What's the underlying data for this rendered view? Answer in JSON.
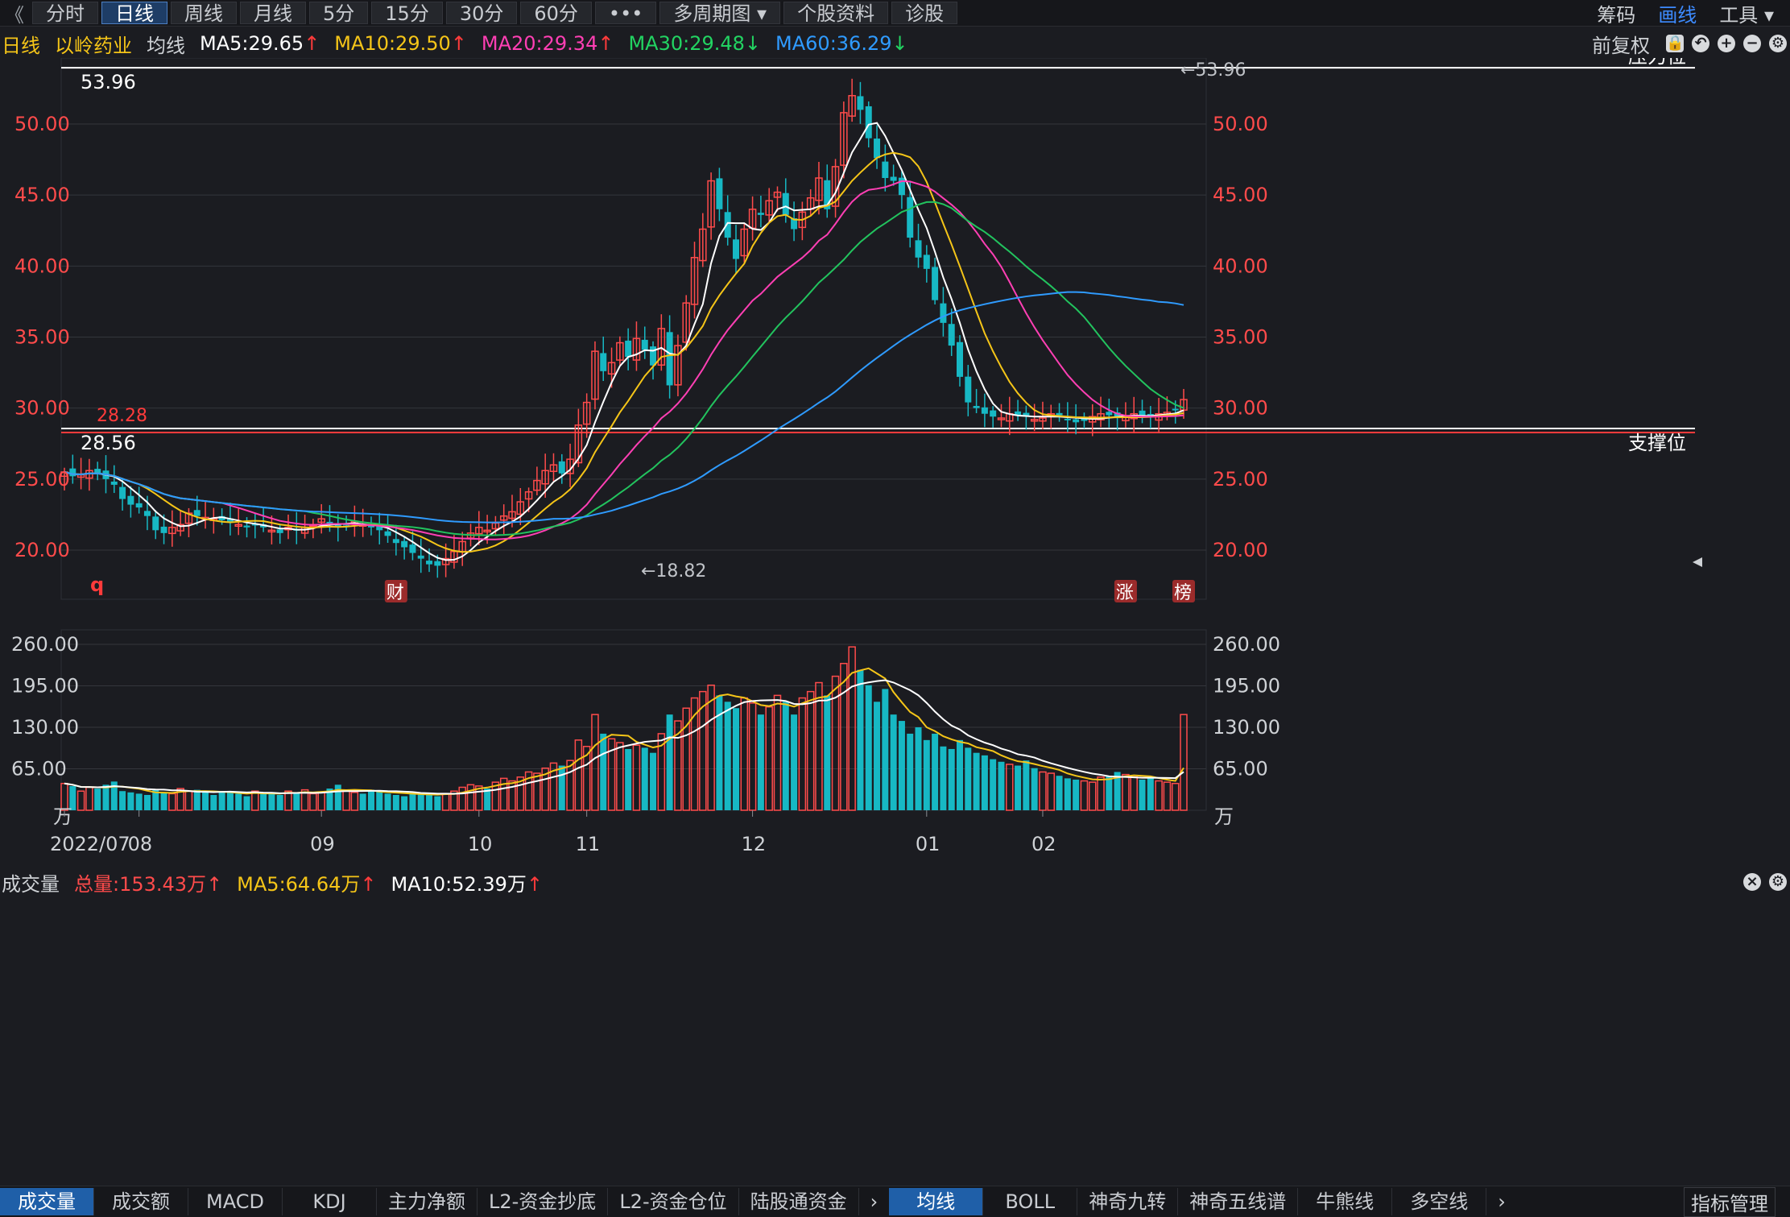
{
  "toolbar": {
    "tabs": [
      {
        "label": "分时",
        "active": false
      },
      {
        "label": "日线",
        "active": true
      },
      {
        "label": "周线",
        "active": false
      },
      {
        "label": "月线",
        "active": false
      },
      {
        "label": "5分",
        "active": false
      },
      {
        "label": "15分",
        "active": false
      },
      {
        "label": "30分",
        "active": false
      },
      {
        "label": "60分",
        "active": false
      },
      {
        "label": "•••",
        "active": false
      },
      {
        "label": "多周期图 ▾",
        "active": false
      },
      {
        "label": "个股资料",
        "active": false
      },
      {
        "label": "诊股",
        "active": false
      }
    ],
    "right_items": [
      {
        "label": "筹码",
        "color": "#cfd2d6"
      },
      {
        "label": "画线",
        "color": "#3d8bff"
      },
      {
        "label": "工具 ▾",
        "color": "#cfd2d6"
      }
    ]
  },
  "info": {
    "period": "日线",
    "stock": "以岭药业",
    "ma_label": "均线",
    "ma": [
      {
        "text": "MA5:29.65",
        "arrow": "↑",
        "color": "#ffffff",
        "arrow_color": "#ff3b3b"
      },
      {
        "text": "MA10:29.50",
        "arrow": "↑",
        "color": "#f5c518",
        "arrow_color": "#ff3b3b"
      },
      {
        "text": "MA20:29.34",
        "arrow": "↑",
        "color": "#ff3fb4",
        "arrow_color": "#ff3b3b"
      },
      {
        "text": "MA30:29.48",
        "arrow": "↓",
        "color": "#22d462",
        "arrow_color": "#22d462"
      },
      {
        "text": "MA60:36.29",
        "arrow": "↓",
        "color": "#2f9bff",
        "arrow_color": "#22d462"
      }
    ],
    "adjust": "前复权"
  },
  "colors": {
    "up": "#ff4b4b",
    "down": "#17b8c4",
    "ma5": "#ffffff",
    "ma10": "#f5c518",
    "ma20": "#ff3fb4",
    "ma30": "#22c35e",
    "ma60": "#2f9bff",
    "grid": "#34363c",
    "axis_price": "#ff4b4b"
  },
  "price_panel": {
    "y_ticks": [
      "50.00",
      "45.00",
      "40.00",
      "35.00",
      "30.00",
      "25.00",
      "20.00"
    ],
    "y_tick_values": [
      50,
      45,
      40,
      35,
      30,
      25,
      20
    ],
    "resistance": {
      "value": 53.96,
      "label": "53.96",
      "tag": "压力位"
    },
    "support": {
      "value": 28.56,
      "label": "28.56",
      "tag": "支撑位"
    },
    "red_line": {
      "value": 28.28,
      "label": "28.28"
    },
    "high_marker": "←53.96",
    "low_marker": "←18.82",
    "events": [
      {
        "label": "财",
        "date_index": 40
      },
      {
        "label": "涨",
        "date_index": 128
      },
      {
        "label": "榜",
        "date_index": 135
      }
    ],
    "corner_letter": "q"
  },
  "volume_panel": {
    "title": "成交量",
    "total": "总量:153.43万",
    "total_arrow": "↑",
    "ma5": "MA5:64.64万",
    "ma5_arrow": "↑",
    "ma10": "MA10:52.39万",
    "ma10_arrow": "↑",
    "y_ticks": [
      "260.00",
      "195.00",
      "130.00",
      "65.00"
    ],
    "y_tick_values": [
      260,
      195,
      130,
      65
    ],
    "unit": "万"
  },
  "x_axis": {
    "labels": [
      {
        "text": "2022/07",
        "date_index": 0
      },
      {
        "text": "08",
        "date_index": 9
      },
      {
        "text": "09",
        "date_index": 31
      },
      {
        "text": "10",
        "date_index": 50
      },
      {
        "text": "11",
        "date_index": 63
      },
      {
        "text": "12",
        "date_index": 83
      },
      {
        "text": "01",
        "date_index": 104
      },
      {
        "text": "02",
        "date_index": 118
      }
    ]
  },
  "bottom_tabs_left": [
    "成交量",
    "成交额",
    "MACD",
    "KDJ",
    "主力净额",
    "L2-资金抄底",
    "L2-资金仓位",
    "陆股通资金"
  ],
  "bottom_tabs_right": [
    "均线",
    "BOLL",
    "神奇九转",
    "神奇五线谱",
    "牛熊线",
    "多空线"
  ],
  "bottom_right_label": "指标管理",
  "chart_data": {
    "type": "candlestick",
    "title": "以岭药业 日线",
    "ylim": [
      17,
      55
    ],
    "volume_ylim": [
      0,
      260
    ],
    "ohlc_step_days": 1,
    "closes": [
      25.5,
      25.2,
      25.3,
      25.6,
      25.4,
      25.0,
      24.6,
      23.6,
      23.2,
      23.0,
      22.4,
      21.4,
      21.2,
      21.6,
      21.8,
      22.6,
      22.4,
      22.3,
      22.2,
      22.1,
      22.0,
      21.8,
      21.6,
      21.8,
      21.6,
      21.4,
      21.2,
      21.6,
      21.4,
      21.6,
      21.8,
      22.2,
      21.9,
      21.6,
      21.8,
      22.0,
      21.8,
      21.6,
      21.4,
      21.0,
      20.5,
      20.2,
      19.8,
      19.4,
      19.0,
      18.9,
      19.4,
      19.9,
      20.6,
      21.2,
      21.6,
      21.4,
      21.9,
      22.4,
      22.7,
      23.4,
      24.1,
      24.9,
      25.6,
      26.0,
      25.4,
      26.4,
      28.8,
      30.4,
      34.0,
      32.6,
      33.2,
      34.6,
      33.6,
      34.9,
      34.1,
      33.0,
      35.6,
      31.6,
      34.4,
      37.4,
      40.6,
      42.6,
      46.0,
      44.0,
      42.0,
      40.5,
      42.6,
      44.0,
      43.6,
      44.6,
      45.2,
      43.6,
      42.6,
      43.8,
      44.8,
      46.2,
      44.0,
      47.0,
      50.8,
      52.0,
      51.0,
      49.0,
      47.6,
      46.2,
      46.0,
      45.0,
      42.0,
      40.6,
      39.8,
      37.6,
      36.0,
      34.4,
      32.2,
      30.4,
      30.0,
      29.6,
      29.4,
      29.3,
      29.6,
      29.5,
      29.4,
      29.2,
      29.3,
      29.6,
      29.5,
      29.2,
      29.0,
      29.1,
      29.4,
      29.6,
      29.5,
      29.3,
      29.4,
      29.6,
      29.5,
      29.4,
      29.6,
      29.7,
      29.9,
      30.6
    ],
    "volumes": [
      42,
      38,
      30,
      36,
      34,
      40,
      45,
      30,
      28,
      26,
      24,
      32,
      28,
      26,
      34,
      30,
      32,
      28,
      24,
      30,
      28,
      26,
      22,
      30,
      26,
      28,
      24,
      30,
      28,
      32,
      26,
      28,
      34,
      40,
      30,
      28,
      26,
      32,
      30,
      26,
      24,
      22,
      28,
      26,
      24,
      22,
      26,
      30,
      36,
      40,
      38,
      34,
      44,
      50,
      46,
      52,
      60,
      58,
      66,
      74,
      70,
      78,
      110,
      100,
      150,
      120,
      112,
      106,
      96,
      102,
      98,
      90,
      120,
      150,
      140,
      160,
      176,
      186,
      196,
      180,
      170,
      160,
      176,
      168,
      150,
      162,
      180,
      170,
      150,
      176,
      186,
      200,
      180,
      210,
      230,
      256,
      220,
      196,
      170,
      190,
      150,
      140,
      120,
      130,
      110,
      120,
      100,
      96,
      110,
      98,
      90,
      86,
      80,
      76,
      72,
      70,
      78,
      66,
      60,
      58,
      54,
      50,
      48,
      46,
      44,
      52,
      54,
      60,
      56,
      52,
      48,
      50,
      46,
      44,
      42,
      150
    ],
    "ma60_note": "MA60 curve slopes up from ~23 to peak ~37.3 in January then declines to 36.29"
  }
}
